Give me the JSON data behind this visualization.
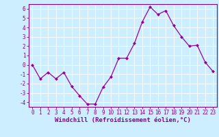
{
  "x": [
    0,
    1,
    2,
    3,
    4,
    5,
    6,
    7,
    8,
    9,
    10,
    11,
    12,
    13,
    14,
    15,
    16,
    17,
    18,
    19,
    20,
    21,
    22,
    23
  ],
  "y": [
    0,
    -1.5,
    -0.8,
    -1.5,
    -0.8,
    -2.3,
    -3.3,
    -4.2,
    -4.2,
    -2.4,
    -1.3,
    0.7,
    0.7,
    2.3,
    4.6,
    6.2,
    5.4,
    5.8,
    4.2,
    3.0,
    2.0,
    2.1,
    0.3,
    -0.7
  ],
  "line_color": "#990099",
  "marker": "D",
  "markersize": 2.0,
  "linewidth": 0.9,
  "background_color": "#cceeff",
  "grid_color": "#ffffff",
  "xlabel": "Windchill (Refroidissement éolien,°C)",
  "xlim": [
    -0.5,
    23.5
  ],
  "ylim": [
    -4.5,
    6.5
  ],
  "yticks": [
    -4,
    -3,
    -2,
    -1,
    0,
    1,
    2,
    3,
    4,
    5,
    6
  ],
  "xticks": [
    0,
    1,
    2,
    3,
    4,
    5,
    6,
    7,
    8,
    9,
    10,
    11,
    12,
    13,
    14,
    15,
    16,
    17,
    18,
    19,
    20,
    21,
    22,
    23
  ],
  "tick_label_fontsize": 5.5,
  "xlabel_fontsize": 6.5,
  "axis_color": "#880088",
  "spine_color": "#880088",
  "grid_linewidth": 0.6
}
